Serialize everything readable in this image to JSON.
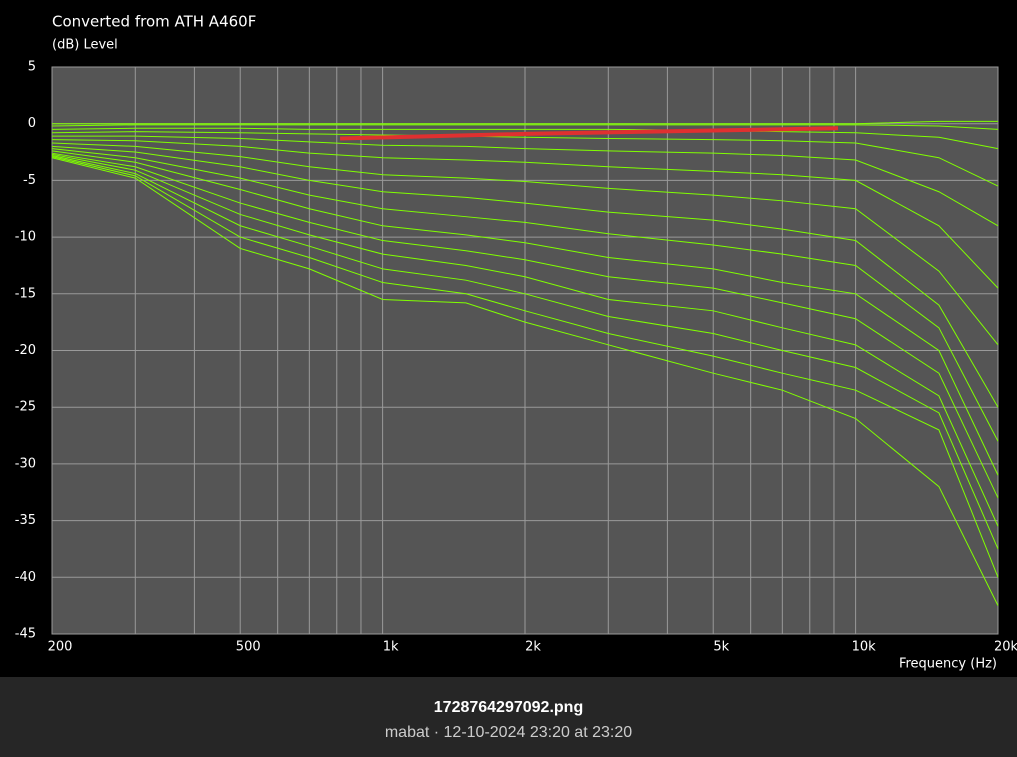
{
  "chart_data": {
    "type": "line",
    "title": "Converted from ATH A460F",
    "y_label": "(dB)  Level",
    "x_label": "Frequency  (Hz)",
    "x": [
      200,
      300,
      500,
      700,
      1000,
      1500,
      2000,
      3000,
      5000,
      7000,
      10000,
      15000,
      20000
    ],
    "xlim": [
      200,
      20000
    ],
    "log_x": true,
    "xticks": [
      200,
      500,
      {
        "value": 1000,
        "label": "1k"
      },
      {
        "value": 2000,
        "label": "2k"
      },
      {
        "value": 5000,
        "label": "5k"
      },
      {
        "value": 10000,
        "label": "10k"
      },
      {
        "value": 20000,
        "label": "20k"
      }
    ],
    "xminor": [
      300,
      400,
      600,
      700,
      800,
      900,
      3000,
      4000,
      6000,
      7000,
      8000,
      9000
    ],
    "ylim": [
      -45,
      5
    ],
    "yticks": [
      5,
      0,
      -5,
      -10,
      -15,
      -20,
      -25,
      -30,
      -35,
      -40,
      -45
    ],
    "grid": true,
    "series": [
      {
        "color": "#80ff00",
        "values": [
          0,
          0,
          0,
          0,
          0,
          0,
          0,
          0,
          0,
          0,
          0,
          0.2,
          0.2
        ]
      },
      {
        "color": "#80ff00",
        "values": [
          -0.2,
          -0.1,
          -0.1,
          -0.1,
          -0.1,
          -0.1,
          -0.1,
          -0.1,
          -0.1,
          -0.1,
          -0.1,
          -0.2,
          -0.5
        ]
      },
      {
        "color": "#80ff00",
        "values": [
          -0.5,
          -0.4,
          -0.4,
          -0.5,
          -0.5,
          -0.5,
          -0.5,
          -0.5,
          -0.6,
          -0.7,
          -0.8,
          -1.2,
          -2.2
        ]
      },
      {
        "color": "#80ff00",
        "values": [
          -0.8,
          -0.7,
          -0.8,
          -0.9,
          -1,
          -1.1,
          -1.2,
          -1.3,
          -1.4,
          -1.5,
          -1.7,
          -3,
          -5.5
        ]
      },
      {
        "color": "#80ff00",
        "values": [
          -1.1,
          -1.1,
          -1.3,
          -1.6,
          -1.9,
          -2,
          -2.2,
          -2.4,
          -2.6,
          -2.8,
          -3.2,
          -6,
          -9
        ]
      },
      {
        "color": "#80ff00",
        "values": [
          -1.4,
          -1.5,
          -2,
          -2.6,
          -3,
          -3.2,
          -3.4,
          -3.8,
          -4.2,
          -4.5,
          -5,
          -9,
          -14.5
        ]
      },
      {
        "color": "#80ff00",
        "values": [
          -1.7,
          -2,
          -2.9,
          -3.8,
          -4.5,
          -4.8,
          -5.1,
          -5.7,
          -6.3,
          -6.8,
          -7.5,
          -13,
          -19.5
        ]
      },
      {
        "color": "#80ff00",
        "values": [
          -2,
          -2.5,
          -3.8,
          -5,
          -6,
          -6.5,
          -7,
          -7.8,
          -8.5,
          -9.3,
          -10.3,
          -16,
          -25
        ]
      },
      {
        "color": "#80ff00",
        "values": [
          -2.2,
          -3,
          -4.8,
          -6.3,
          -7.5,
          -8.2,
          -8.7,
          -9.7,
          -10.7,
          -11.5,
          -12.5,
          -18,
          -28
        ]
      },
      {
        "color": "#80ff00",
        "values": [
          -2.4,
          -3.4,
          -5.8,
          -7.5,
          -9,
          -9.8,
          -10.5,
          -11.8,
          -12.8,
          -14,
          -15,
          -20,
          -31
        ]
      },
      {
        "color": "#80ff00",
        "values": [
          -2.6,
          -3.8,
          -7,
          -8.7,
          -10.3,
          -11.2,
          -12,
          -13.5,
          -14.5,
          -15.8,
          -17.2,
          -22,
          -33
        ]
      },
      {
        "color": "#80ff00",
        "values": [
          -2.7,
          -4.1,
          -8,
          -9.8,
          -11.5,
          -12.5,
          -13.5,
          -15.5,
          -16.5,
          -18,
          -19.5,
          -24,
          -35.5
        ]
      },
      {
        "color": "#80ff00",
        "values": [
          -2.8,
          -4.4,
          -9,
          -10.8,
          -12.8,
          -13.8,
          -15,
          -17,
          -18.5,
          -20,
          -21.5,
          -25.5,
          -37.5
        ]
      },
      {
        "color": "#80ff00",
        "values": [
          -2.9,
          -4.6,
          -10,
          -11.8,
          -14,
          -15,
          -16.5,
          -18.5,
          -20.5,
          -22,
          -23.5,
          -27,
          -40
        ]
      },
      {
        "color": "#80ff00",
        "values": [
          -3,
          -4.8,
          -11,
          -12.8,
          -15.5,
          -15.8,
          -17.5,
          -19.5,
          -22,
          -23.5,
          -26,
          -32,
          -42.5
        ]
      }
    ],
    "highlight": {
      "color": "#e03030",
      "x": [
        813,
        2000,
        5000,
        9180
      ],
      "values": [
        -1.3,
        -0.9,
        -0.6,
        -0.4
      ]
    }
  },
  "caption": {
    "filename": "1728764297092.png",
    "meta": "mabat · 12-10-2024 23:20 at 23:20"
  }
}
